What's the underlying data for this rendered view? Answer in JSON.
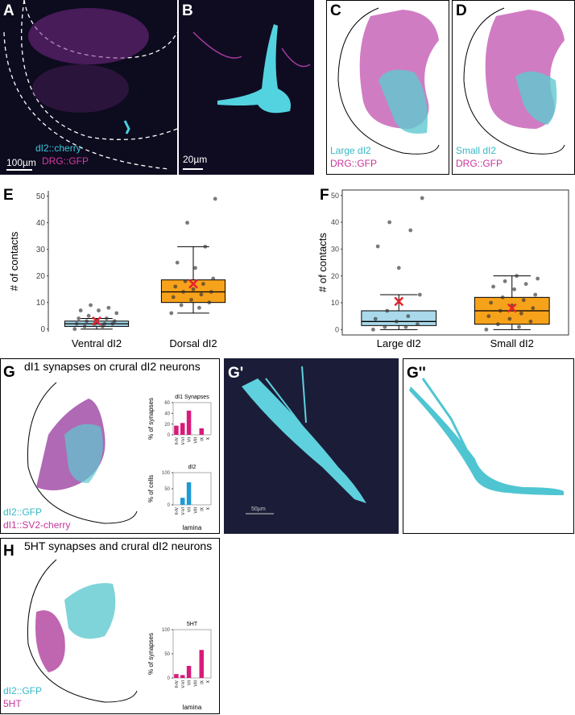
{
  "panels": [
    {
      "label": "A",
      "legend": [
        "dI2::cherry",
        "DRG::GFP"
      ],
      "scale_bar": "100µm"
    },
    {
      "label": "B",
      "scale_bar": "20µm"
    },
    {
      "label": "C",
      "legend": [
        "Large dI2",
        "DRG::GFP"
      ]
    },
    {
      "label": "D",
      "legend": [
        "Small dI2",
        "DRG::GFP"
      ]
    },
    {
      "label": "E"
    },
    {
      "label": "F"
    },
    {
      "label": "G",
      "title": "dI1 synapses on crural dI2 neurons",
      "legend": [
        "dI2::GFP",
        "dI1::SV2-cherry"
      ]
    },
    {
      "label": "G'",
      "scale_bar": "50µm"
    },
    {
      "label": "G''"
    },
    {
      "label": "H",
      "title": "5HT synapses and crural dI2 neurons",
      "legend": [
        "dI2::GFP",
        "5HT"
      ]
    }
  ],
  "chart_data": [
    {
      "type": "box",
      "y_label": "# of contacts",
      "categories": [
        "Ventral dI2",
        "Dorsal dI2"
      ],
      "ylim": [
        -1,
        52
      ],
      "yticks": [
        0,
        10,
        20,
        30,
        40,
        50
      ],
      "boxes": [
        {
          "color": "#a9d9ea",
          "min": 0,
          "q1": 1,
          "median": 2,
          "q3": 3,
          "max": 4,
          "mean": 3,
          "points": [
            0,
            1,
            1,
            2,
            2,
            2,
            2,
            3,
            3,
            3,
            4,
            4,
            5,
            6,
            7,
            7,
            8,
            9
          ]
        },
        {
          "color": "#f7a21b",
          "min": 6,
          "q1": 10,
          "median": 14,
          "q3": 18.5,
          "max": 31,
          "mean": 17,
          "points": [
            6,
            8,
            9,
            10,
            11,
            12,
            13,
            14,
            14,
            15,
            16,
            17,
            18,
            19,
            23,
            25,
            31,
            40,
            49
          ]
        }
      ]
    },
    {
      "type": "box",
      "y_label": "# of contacts",
      "categories": [
        "Large dI2",
        "Small dI2"
      ],
      "ylim": [
        -2,
        52
      ],
      "yticks": [
        0,
        10,
        20,
        30,
        40,
        50
      ],
      "frame": true,
      "boxes": [
        {
          "color": "#a9d9ea",
          "min": 0,
          "q1": 1.5,
          "median": 3,
          "q3": 7,
          "max": 13,
          "mean": 10.5,
          "points": [
            0,
            1,
            1,
            2,
            3,
            4,
            5,
            7,
            13,
            23,
            31,
            37,
            40,
            49
          ]
        },
        {
          "color": "#f7a21b",
          "min": 0,
          "q1": 2,
          "median": 7,
          "q3": 12,
          "max": 20,
          "mean": 8,
          "points": [
            0,
            1,
            2,
            3,
            4,
            5,
            6,
            7,
            8,
            9,
            10,
            11,
            12,
            13,
            15,
            16,
            17,
            18,
            19,
            20
          ]
        }
      ]
    },
    {
      "type": "bar",
      "title": "dI1 Synapses",
      "y_label": "% of synapses",
      "color": "#d81b7a",
      "categories": [
        "II-IV",
        "V-VI",
        "VII",
        "VIII",
        "IX",
        "X"
      ],
      "values": [
        17,
        22,
        45,
        0,
        12,
        0
      ],
      "ylim": [
        0,
        60
      ],
      "yticks": [
        0,
        20,
        40,
        60
      ]
    },
    {
      "type": "bar",
      "title": "dI2",
      "y_label": "% of cells",
      "x_label": "lamina",
      "color": "#1e9ad6",
      "categories": [
        "II-IV",
        "V-VI",
        "VII",
        "VIII",
        "IX",
        "X"
      ],
      "values": [
        0,
        22,
        70,
        0,
        0,
        0
      ],
      "ylim": [
        0,
        100
      ],
      "yticks": [
        0,
        50,
        100
      ]
    },
    {
      "type": "bar",
      "title": "5HT",
      "y_label": "% of synapses",
      "x_label": "lamina",
      "color": "#d81b7a",
      "categories": [
        "II-IV",
        "V-VI",
        "VII",
        "VIII",
        "IX",
        "X"
      ],
      "values": [
        8,
        6,
        25,
        0,
        58,
        0
      ],
      "ylim": [
        0,
        100
      ],
      "yticks": [
        0,
        50,
        100
      ]
    }
  ]
}
